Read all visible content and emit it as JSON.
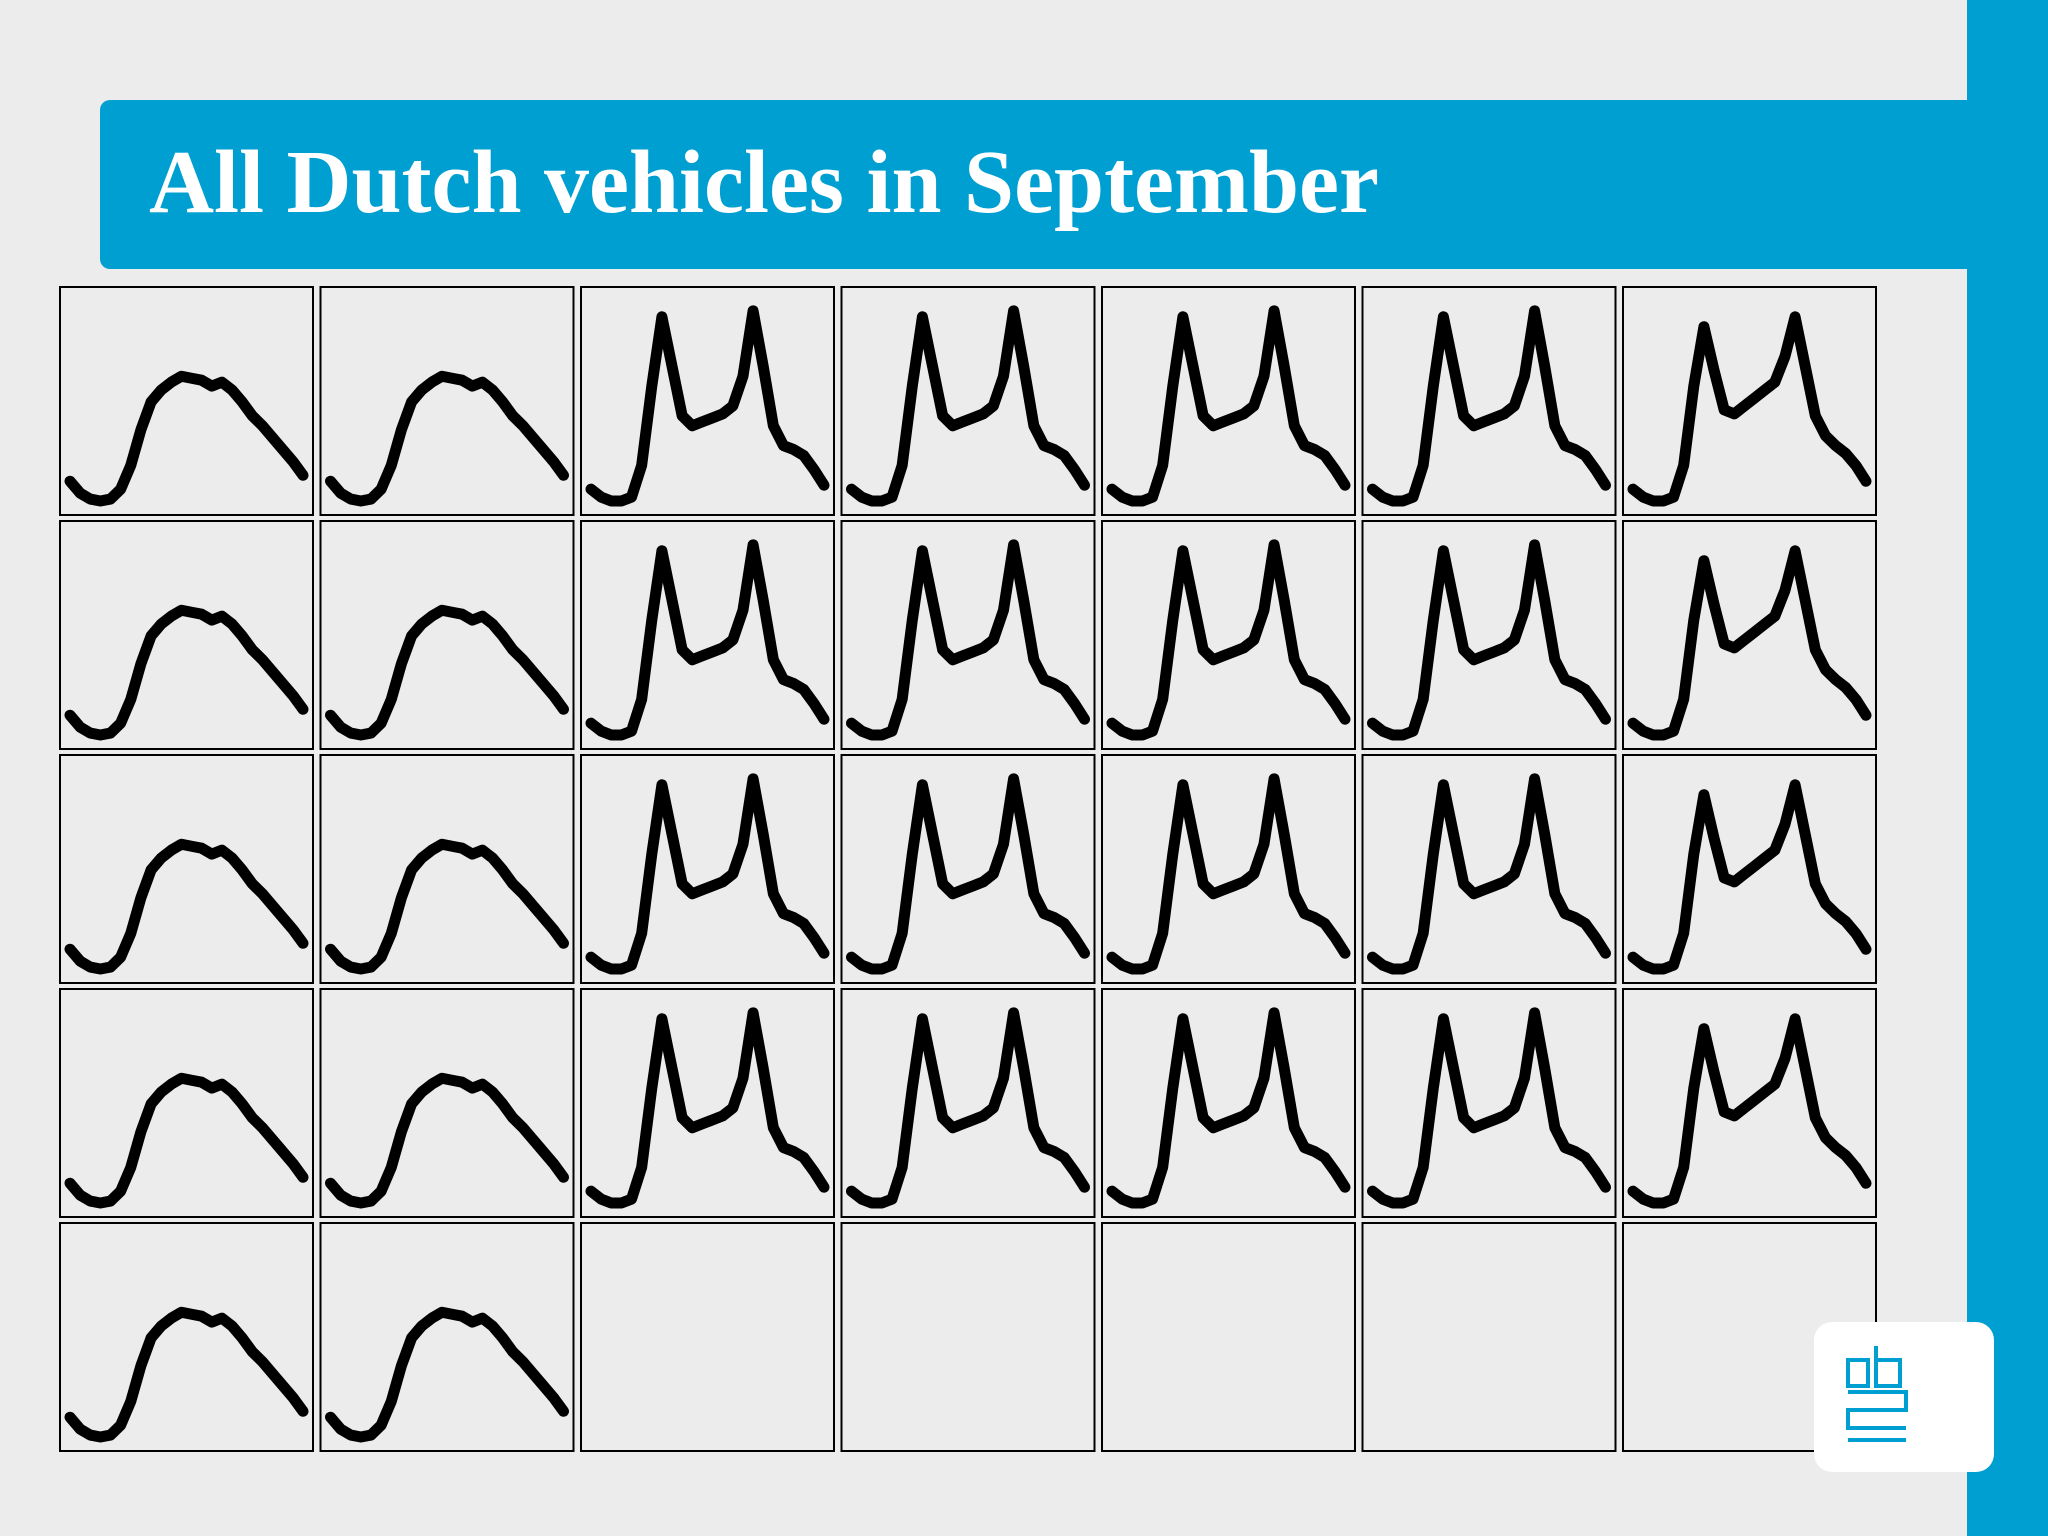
{
  "chart_data": {
    "type": "line",
    "title": "All Dutch vehicles in September",
    "color": "#000000",
    "ylim": [
      0,
      105
    ],
    "panels": [
      {
        "values": [
          12,
          6,
          3,
          2,
          3,
          8,
          20,
          38,
          52,
          58,
          62,
          65,
          64,
          63,
          60,
          62,
          58,
          52,
          45,
          40,
          34,
          28,
          22,
          15
        ]
      },
      {
        "values": [
          12,
          6,
          3,
          2,
          3,
          8,
          20,
          38,
          52,
          58,
          62,
          65,
          64,
          63,
          60,
          62,
          58,
          52,
          45,
          40,
          34,
          28,
          22,
          15
        ]
      },
      {
        "values": [
          8,
          4,
          2,
          2,
          4,
          20,
          60,
          95,
          70,
          45,
          40,
          42,
          44,
          46,
          50,
          65,
          98,
          70,
          40,
          30,
          28,
          25,
          18,
          10
        ]
      },
      {
        "values": [
          8,
          4,
          2,
          2,
          4,
          20,
          60,
          95,
          70,
          45,
          40,
          42,
          44,
          46,
          50,
          65,
          98,
          70,
          40,
          30,
          28,
          25,
          18,
          10
        ]
      },
      {
        "values": [
          8,
          4,
          2,
          2,
          4,
          20,
          60,
          95,
          70,
          45,
          40,
          42,
          44,
          46,
          50,
          65,
          98,
          70,
          40,
          30,
          28,
          25,
          18,
          10
        ]
      },
      {
        "values": [
          8,
          4,
          2,
          2,
          4,
          20,
          60,
          95,
          70,
          45,
          40,
          42,
          44,
          46,
          50,
          65,
          98,
          70,
          40,
          30,
          28,
          25,
          18,
          10
        ]
      },
      {
        "values": [
          8,
          4,
          2,
          2,
          4,
          20,
          60,
          90,
          68,
          48,
          46,
          50,
          54,
          58,
          62,
          75,
          95,
          70,
          45,
          35,
          30,
          26,
          20,
          12
        ]
      },
      {
        "values": [
          12,
          6,
          3,
          2,
          3,
          8,
          20,
          38,
          52,
          58,
          62,
          65,
          64,
          63,
          60,
          62,
          58,
          52,
          45,
          40,
          34,
          28,
          22,
          15
        ]
      },
      {
        "values": [
          12,
          6,
          3,
          2,
          3,
          8,
          20,
          38,
          52,
          58,
          62,
          65,
          64,
          63,
          60,
          62,
          58,
          52,
          45,
          40,
          34,
          28,
          22,
          15
        ]
      },
      {
        "values": [
          8,
          4,
          2,
          2,
          4,
          20,
          60,
          95,
          70,
          45,
          40,
          42,
          44,
          46,
          50,
          65,
          98,
          70,
          40,
          30,
          28,
          25,
          18,
          10
        ]
      },
      {
        "values": [
          8,
          4,
          2,
          2,
          4,
          20,
          60,
          95,
          70,
          45,
          40,
          42,
          44,
          46,
          50,
          65,
          98,
          70,
          40,
          30,
          28,
          25,
          18,
          10
        ]
      },
      {
        "values": [
          8,
          4,
          2,
          2,
          4,
          20,
          60,
          95,
          70,
          45,
          40,
          42,
          44,
          46,
          50,
          65,
          98,
          70,
          40,
          30,
          28,
          25,
          18,
          10
        ]
      },
      {
        "values": [
          8,
          4,
          2,
          2,
          4,
          20,
          60,
          95,
          70,
          45,
          40,
          42,
          44,
          46,
          50,
          65,
          98,
          70,
          40,
          30,
          28,
          25,
          18,
          10
        ]
      },
      {
        "values": [
          8,
          4,
          2,
          2,
          4,
          20,
          60,
          90,
          68,
          48,
          46,
          50,
          54,
          58,
          62,
          75,
          95,
          70,
          45,
          35,
          30,
          26,
          20,
          12
        ]
      },
      {
        "values": [
          12,
          6,
          3,
          2,
          3,
          8,
          20,
          38,
          52,
          58,
          62,
          65,
          64,
          63,
          60,
          62,
          58,
          52,
          45,
          40,
          34,
          28,
          22,
          15
        ]
      },
      {
        "values": [
          12,
          6,
          3,
          2,
          3,
          8,
          20,
          38,
          52,
          58,
          62,
          65,
          64,
          63,
          60,
          62,
          58,
          52,
          45,
          40,
          34,
          28,
          22,
          15
        ]
      },
      {
        "values": [
          8,
          4,
          2,
          2,
          4,
          20,
          60,
          95,
          70,
          45,
          40,
          42,
          44,
          46,
          50,
          65,
          98,
          70,
          40,
          30,
          28,
          25,
          18,
          10
        ]
      },
      {
        "values": [
          8,
          4,
          2,
          2,
          4,
          20,
          60,
          95,
          70,
          45,
          40,
          42,
          44,
          46,
          50,
          65,
          98,
          70,
          40,
          30,
          28,
          25,
          18,
          10
        ]
      },
      {
        "values": [
          8,
          4,
          2,
          2,
          4,
          20,
          60,
          95,
          70,
          45,
          40,
          42,
          44,
          46,
          50,
          65,
          98,
          70,
          40,
          30,
          28,
          25,
          18,
          10
        ]
      },
      {
        "values": [
          8,
          4,
          2,
          2,
          4,
          20,
          60,
          95,
          70,
          45,
          40,
          42,
          44,
          46,
          50,
          65,
          98,
          70,
          40,
          30,
          28,
          25,
          18,
          10
        ]
      },
      {
        "values": [
          8,
          4,
          2,
          2,
          4,
          20,
          60,
          90,
          68,
          48,
          46,
          50,
          54,
          58,
          62,
          75,
          95,
          70,
          45,
          35,
          30,
          26,
          20,
          12
        ]
      },
      {
        "values": [
          12,
          6,
          3,
          2,
          3,
          8,
          20,
          38,
          52,
          58,
          62,
          65,
          64,
          63,
          60,
          62,
          58,
          52,
          45,
          40,
          34,
          28,
          22,
          15
        ]
      },
      {
        "values": [
          12,
          6,
          3,
          2,
          3,
          8,
          20,
          38,
          52,
          58,
          62,
          65,
          64,
          63,
          60,
          62,
          58,
          52,
          45,
          40,
          34,
          28,
          22,
          15
        ]
      },
      {
        "values": [
          8,
          4,
          2,
          2,
          4,
          20,
          60,
          95,
          70,
          45,
          40,
          42,
          44,
          46,
          50,
          65,
          98,
          70,
          40,
          30,
          28,
          25,
          18,
          10
        ]
      },
      {
        "values": [
          8,
          4,
          2,
          2,
          4,
          20,
          60,
          95,
          70,
          45,
          40,
          42,
          44,
          46,
          50,
          65,
          98,
          70,
          40,
          30,
          28,
          25,
          18,
          10
        ]
      },
      {
        "values": [
          8,
          4,
          2,
          2,
          4,
          20,
          60,
          95,
          70,
          45,
          40,
          42,
          44,
          46,
          50,
          65,
          98,
          70,
          40,
          30,
          28,
          25,
          18,
          10
        ]
      },
      {
        "values": [
          8,
          4,
          2,
          2,
          4,
          20,
          60,
          95,
          70,
          45,
          40,
          42,
          44,
          46,
          50,
          65,
          98,
          70,
          40,
          30,
          28,
          25,
          18,
          10
        ]
      },
      {
        "values": [
          8,
          4,
          2,
          2,
          4,
          20,
          60,
          90,
          68,
          48,
          46,
          50,
          54,
          58,
          62,
          75,
          95,
          70,
          45,
          35,
          30,
          26,
          20,
          12
        ]
      },
      {
        "values": [
          12,
          6,
          3,
          2,
          3,
          8,
          20,
          38,
          52,
          58,
          62,
          65,
          64,
          63,
          60,
          62,
          58,
          52,
          45,
          40,
          34,
          28,
          22,
          15
        ]
      },
      {
        "values": [
          12,
          6,
          3,
          2,
          3,
          8,
          20,
          38,
          52,
          58,
          62,
          65,
          64,
          63,
          60,
          62,
          58,
          52,
          45,
          40,
          34,
          28,
          22,
          15
        ]
      }
    ]
  }
}
